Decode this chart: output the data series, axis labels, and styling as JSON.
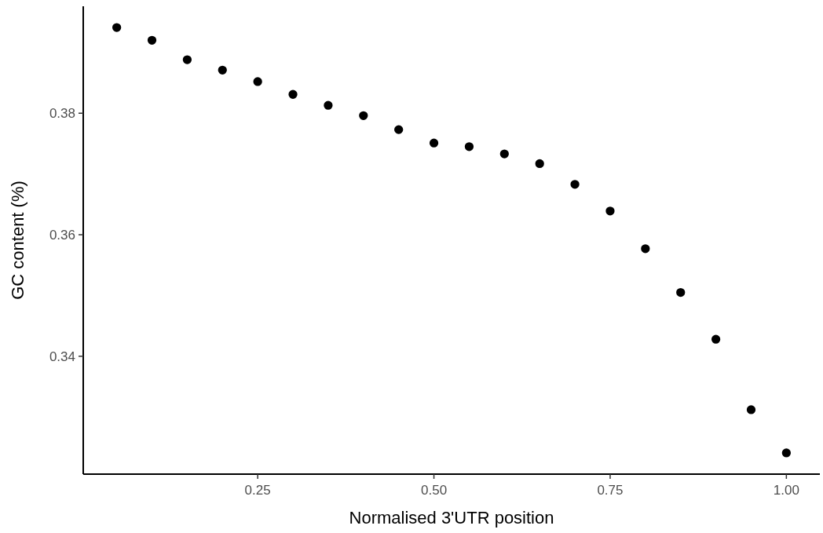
{
  "chart_data": {
    "type": "scatter",
    "xlabel": "Normalised 3'UTR position",
    "ylabel": "GC content (%)",
    "x": [
      0.05,
      0.1,
      0.15,
      0.2,
      0.25,
      0.3,
      0.35,
      0.4,
      0.45,
      0.5,
      0.55,
      0.6,
      0.65,
      0.7,
      0.75,
      0.8,
      0.85,
      0.9,
      0.95,
      1.0
    ],
    "series": [
      {
        "color": "#000000",
        "values": [
          0.3941,
          0.392,
          0.3888,
          0.3871,
          0.3852,
          0.3831,
          0.3813,
          0.3796,
          0.3773,
          0.3751,
          0.3745,
          0.3733,
          0.3717,
          0.3683,
          0.3639,
          0.3577,
          0.3505,
          0.3428,
          0.3312,
          0.3241
        ]
      }
    ],
    "xlim": [
      0.0025,
      1.0475
    ],
    "ylim": [
      0.3206,
      0.3976
    ],
    "xticks": [
      {
        "value": 0.25,
        "label": "0.25"
      },
      {
        "value": 0.5,
        "label": "0.50"
      },
      {
        "value": 0.75,
        "label": "0.75"
      },
      {
        "value": 1.0,
        "label": "1.00"
      }
    ],
    "yticks": [
      {
        "value": 0.34,
        "label": "0.34"
      },
      {
        "value": 0.36,
        "label": "0.36"
      },
      {
        "value": 0.38,
        "label": "0.38"
      }
    ],
    "grid": false,
    "marker": "circle"
  }
}
